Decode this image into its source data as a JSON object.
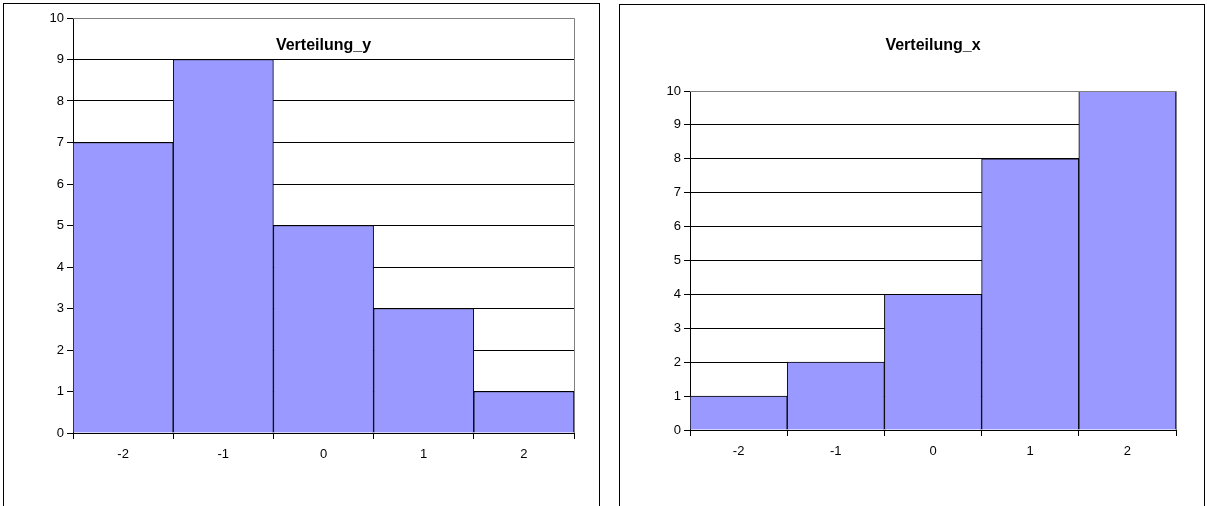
{
  "chart_data": [
    {
      "type": "bar",
      "title": "Verteilung_y",
      "categories": [
        "-2",
        "-1",
        "0",
        "1",
        "2"
      ],
      "values": [
        7,
        9,
        5,
        3,
        1
      ],
      "color": "#9999ff",
      "ylim": [
        0,
        10
      ],
      "yticks": [
        0,
        1,
        2,
        3,
        4,
        5,
        6,
        7,
        8,
        9,
        10
      ],
      "grid": "y"
    },
    {
      "type": "bar",
      "title": "Verteilung_x",
      "categories": [
        "-2",
        "-1",
        "0",
        "1",
        "2"
      ],
      "values": [
        1,
        2,
        4,
        8,
        10
      ],
      "color": "#9999ff",
      "ylim": [
        0,
        10
      ],
      "yticks": [
        0,
        1,
        2,
        3,
        4,
        5,
        6,
        7,
        8,
        9,
        10
      ],
      "grid": "y"
    }
  ]
}
